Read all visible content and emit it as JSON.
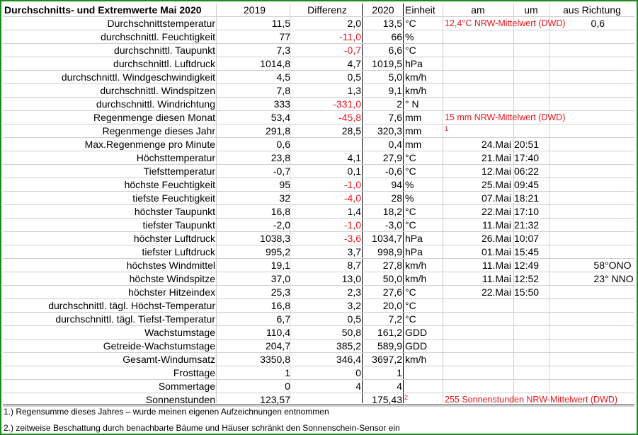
{
  "header": {
    "title": "Durchschnitts- und Extremwerte Mai 2020",
    "col_2019": "2019",
    "col_diff": "Differenz",
    "col_2020": "2020",
    "col_unit": "Einheit",
    "col_am": "am",
    "col_um": "um",
    "col_dir": "aus Richtung"
  },
  "rows": [
    {
      "label": "Durchschnittstemperatur",
      "v2019": "11,5",
      "diff": "2,0",
      "diff_red": false,
      "v2020": "13,5",
      "unit": "°C",
      "note": "12,4°C NRW-Mittelwert (DWD)",
      "dir_val": "0,6"
    },
    {
      "label": "durchschnittl. Feuchtigkeit",
      "v2019": "77",
      "diff": "-11,0",
      "diff_red": true,
      "v2020": "66",
      "unit": "%"
    },
    {
      "label": "durchschnittl. Taupunkt",
      "v2019": "7,3",
      "diff": "-0,7",
      "diff_red": true,
      "v2020": "6,6",
      "unit": "°C"
    },
    {
      "label": "durchschnittl. Luftdruck",
      "v2019": "1014,8",
      "diff": "4,7",
      "diff_red": false,
      "v2020": "1019,5",
      "unit": " hPa"
    },
    {
      "label": "durchschnittl. Windgeschwindigkeit",
      "v2019": "4,5",
      "diff": "0,5",
      "diff_red": false,
      "v2020": "5,0",
      "unit": "km/h"
    },
    {
      "label": "durchschnittl. Windspitzen",
      "v2019": "7,8",
      "diff": "1,3",
      "diff_red": false,
      "v2020": "9,1",
      "unit": "km/h"
    },
    {
      "label": "durchschnittl. Windrichtung",
      "v2019": "333",
      "diff": "-331,0",
      "diff_red": true,
      "v2020": "2",
      "unit": "°  N"
    },
    {
      "label": "Regenmenge diesen Monat",
      "v2019": "53,4",
      "diff": "-45,8",
      "diff_red": true,
      "v2020": "7,6",
      "unit": "mm",
      "note": "15 mm NRW-Mittelwert (DWD)"
    },
    {
      "label": "Regenmenge dieses Jahr",
      "v2019": "291,8",
      "diff": "28,5",
      "diff_red": false,
      "v2020": "320,3",
      "unit": "mm",
      "sup": "1"
    },
    {
      "label": "Max.Regenmenge pro Minute",
      "v2019": "0,6",
      "diff": "",
      "diff_red": false,
      "v2020": "0,4",
      "unit": "mm",
      "am": "24.Mai",
      "um": "20:51"
    },
    {
      "label": "Höchsttemperatur",
      "v2019": "23,8",
      "diff": "4,1",
      "diff_red": false,
      "v2020": "27,9",
      "unit": "°C",
      "am": "21.Mai",
      "um": "17:40"
    },
    {
      "label": "Tiefsttemperatur",
      "v2019": "-0,7",
      "diff": "0,1",
      "diff_red": false,
      "v2020": "-0,6",
      "unit": "°C",
      "am": "12.Mai",
      "um": "06:22"
    },
    {
      "label": "höchste Feuchtigkeit",
      "v2019": "95",
      "diff": "-1,0",
      "diff_red": true,
      "v2020": "94",
      "unit": "%",
      "am": "25.Mai",
      "um": "09:45"
    },
    {
      "label": "tiefste Feuchtigkeit",
      "v2019": "32",
      "diff": "-4,0",
      "diff_red": true,
      "v2020": "28",
      "unit": "%",
      "am": "07.Mai",
      "um": "18:21"
    },
    {
      "label": "höchster Taupunkt",
      "v2019": "16,8",
      "diff": "1,4",
      "diff_red": false,
      "v2020": "18,2",
      "unit": "°C",
      "am": "22.Mai",
      "um": "17:10"
    },
    {
      "label": "tiefster Taupunkt",
      "v2019": "-2,0",
      "diff": "-1,0",
      "diff_red": true,
      "v2020": "-3,0",
      "unit": "°C",
      "am": "11.Mai",
      "um": "21:32"
    },
    {
      "label": "höchster Luftdruck",
      "v2019": "1038,3",
      "diff": "-3,6",
      "diff_red": true,
      "v2020": "1034,7",
      "unit": "hPa",
      "am": "26.Mai",
      "um": "10:07"
    },
    {
      "label": "tiefster Luftdruck",
      "v2019": "995,2",
      "diff": "3,7",
      "diff_red": false,
      "v2020": "998,9",
      "unit": " hPa",
      "am": "01.Mai",
      "um": "15:45"
    },
    {
      "label": "höchstes Windmittel",
      "v2019": "19,1",
      "diff": "8,7",
      "diff_red": false,
      "v2020": "27,8",
      "unit": "km/h",
      "am": "11.Mai",
      "um": "12:49",
      "dir_val": "58",
      "dir_txt": "°ONO"
    },
    {
      "label": "höchste Windspitze",
      "v2019": "37,0",
      "diff": "13,0",
      "diff_red": false,
      "v2020": "50,0",
      "unit": "km/h",
      "am": "11.Mai",
      "um": "12:52",
      "dir_val": "23",
      "dir_txt": "° NNO"
    },
    {
      "label": "höchster Hitzeindex",
      "v2019": "25,3",
      "diff": "2,3",
      "diff_red": false,
      "v2020": "27,6",
      "unit": "°C",
      "am": "22.Mai",
      "um": "15:50"
    },
    {
      "label": "durchschnittl. tägl. Höchst-Temperatur",
      "v2019": "16,8",
      "diff": "3,2",
      "diff_red": false,
      "v2020": "20,0",
      "unit": "°C"
    },
    {
      "label": "durchschnittl. tägl. Tiefst-Temperatur",
      "v2019": "6,7",
      "diff": "0,5",
      "diff_red": false,
      "v2020": "7,2",
      "unit": "°C"
    },
    {
      "label": "Wachstumstage",
      "v2019": "110,4",
      "diff": "50,8",
      "diff_red": false,
      "v2020": "161,2",
      "unit": " GDD"
    },
    {
      "label": "Getreide-Wachstumstage",
      "v2019": "204,7",
      "diff": "385,2",
      "diff_red": false,
      "v2020": "589,9",
      "unit": " GDD"
    },
    {
      "label": "Gesamt-Windumsatz",
      "v2019": "3350,8",
      "diff": "346,4",
      "diff_red": false,
      "v2020": "3697,2",
      "unit": " km/h"
    },
    {
      "label": "Frosttage",
      "v2019": "1",
      "diff": "0",
      "diff_red": false,
      "v2020": "1",
      "unit": ""
    },
    {
      "label": "Sommertage",
      "v2019": "0",
      "diff": "4",
      "diff_red": false,
      "v2020": "4",
      "unit": ""
    },
    {
      "label": "Sonnenstunden",
      "v2019": "123,57",
      "diff": "",
      "diff_red": false,
      "v2020": "175,43",
      "unit": "",
      "sup": "2",
      "note": "255 Sonnenstunden NRW-Mittelwert (DWD)"
    }
  ],
  "footnotes": [
    "1.) Regensumme dieses Jahres – wurde meinen eigenen Aufzeichnungen entnommen",
    "2.) zeitweise Beschattung durch benachbarte Bäume und Häuser schränkt den Sonnenschein-Sensor ein"
  ],
  "colors": {
    "frame": "#1c8a1c",
    "negative": "#e8161b",
    "note": "#e8161b"
  }
}
